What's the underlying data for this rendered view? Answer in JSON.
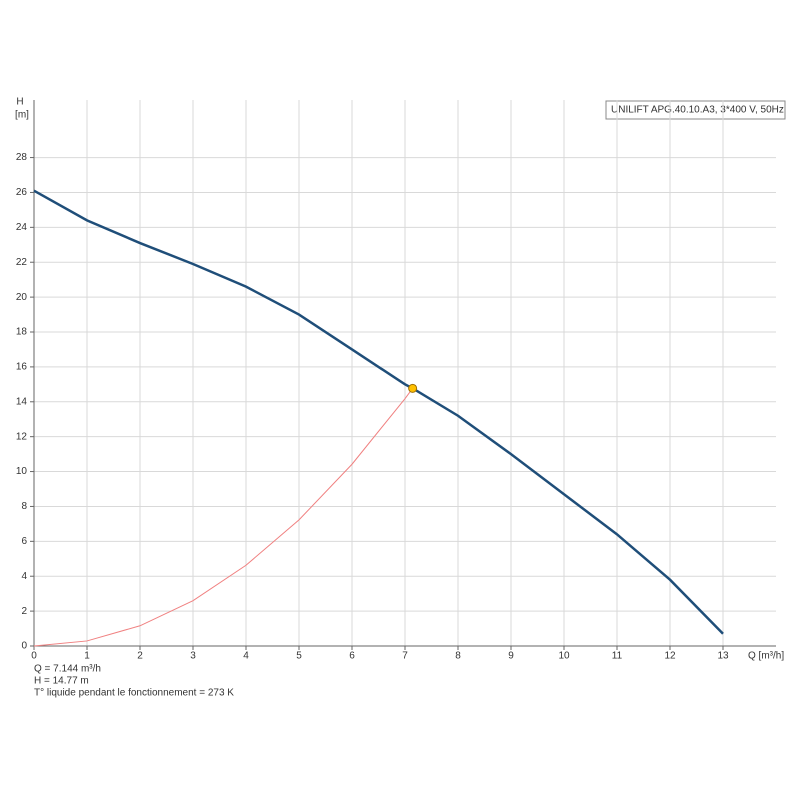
{
  "chart_data": {
    "type": "line",
    "y_label_top": "H",
    "y_label_unit": "[m]",
    "x_label": "Q [m³/h]",
    "legend_text": "UNILIFT APG.40.10.A3, 3*400 V, 50Hz",
    "series": [
      {
        "name": "pump-curve",
        "color": "#1f4e79",
        "x": [
          0,
          1,
          2,
          3,
          4,
          5,
          6,
          7,
          7.144,
          8,
          9,
          10,
          11,
          12,
          13
        ],
        "values": [
          26.1,
          24.4,
          23.1,
          21.9,
          20.6,
          19.0,
          17.0,
          15.0,
          14.77,
          13.2,
          11.0,
          8.7,
          6.4,
          3.8,
          0.7
        ]
      },
      {
        "name": "system-curve",
        "color": "#f08080",
        "x": [
          0,
          1,
          2,
          3,
          4,
          5,
          6,
          7,
          7.144
        ],
        "values": [
          0,
          0.29,
          1.16,
          2.6,
          4.63,
          7.23,
          10.42,
          14.18,
          14.77
        ]
      }
    ],
    "operating_point": {
      "x": 7.144,
      "y": 14.77,
      "color": "#ffc000"
    },
    "info_lines": [
      "Q = 7.144 m³/h",
      "H = 14.77 m",
      "T° liquide pendant le fonctionnement = 273 K"
    ],
    "xlim": [
      0,
      14
    ],
    "ylim": [
      0,
      31.3
    ],
    "xticks": [
      0,
      1,
      2,
      3,
      4,
      5,
      6,
      7,
      8,
      9,
      10,
      11,
      12,
      13
    ],
    "yticks": [
      0,
      2,
      4,
      6,
      8,
      10,
      12,
      14,
      16,
      18,
      20,
      22,
      24,
      26,
      28
    ],
    "grid": true
  }
}
